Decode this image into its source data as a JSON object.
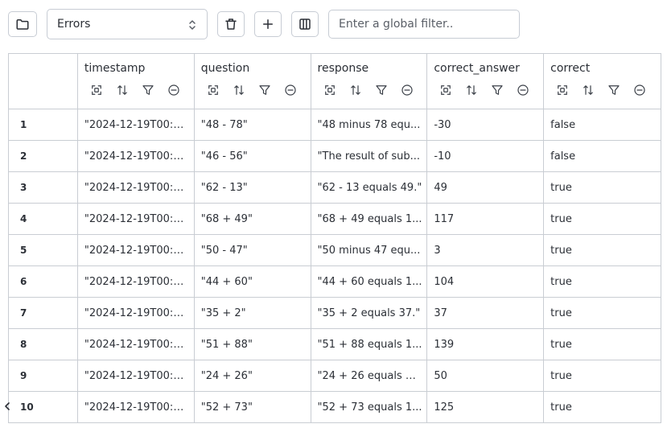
{
  "toolbar": {
    "folder_icon": "folder-icon",
    "view_select": {
      "selected": "Errors"
    },
    "delete_icon": "trash-icon",
    "add_icon": "plus-icon",
    "columns_icon": "columns-icon",
    "filter": {
      "placeholder": "Enter a global filter..",
      "value": ""
    }
  },
  "table": {
    "columns": [
      "timestamp",
      "question",
      "response",
      "correct_answer",
      "correct"
    ],
    "column_icons": [
      "expand-icon",
      "sort-icon",
      "filter-icon",
      "hide-icon"
    ],
    "rows": [
      {
        "index": "1",
        "timestamp": "\"2024-12-19T00:5...",
        "question": "\"48 - 78\"",
        "response": "\"48 minus 78 equ...",
        "correct_answer": "-30",
        "correct": "false"
      },
      {
        "index": "2",
        "timestamp": "\"2024-12-19T00:5...",
        "question": "\"46 - 56\"",
        "response": "\"The result of sub...",
        "correct_answer": "-10",
        "correct": "false"
      },
      {
        "index": "3",
        "timestamp": "\"2024-12-19T00:5...",
        "question": "\"62 - 13\"",
        "response": "\"62 - 13 equals 49.\"",
        "correct_answer": "49",
        "correct": "true"
      },
      {
        "index": "4",
        "timestamp": "\"2024-12-19T00:5...",
        "question": "\"68 + 49\"",
        "response": "\"68 + 49 equals 1...",
        "correct_answer": "117",
        "correct": "true"
      },
      {
        "index": "5",
        "timestamp": "\"2024-12-19T00:5...",
        "question": "\"50 - 47\"",
        "response": "\"50 minus 47 equ...",
        "correct_answer": "3",
        "correct": "true"
      },
      {
        "index": "6",
        "timestamp": "\"2024-12-19T00:5...",
        "question": "\"44 + 60\"",
        "response": "\"44 + 60 equals 1...",
        "correct_answer": "104",
        "correct": "true"
      },
      {
        "index": "7",
        "timestamp": "\"2024-12-19T00:5...",
        "question": "\"35 + 2\"",
        "response": "\"35 + 2 equals 37.\"",
        "correct_answer": "37",
        "correct": "true"
      },
      {
        "index": "8",
        "timestamp": "\"2024-12-19T00:5...",
        "question": "\"51 + 88\"",
        "response": "\"51 + 88 equals 1...",
        "correct_answer": "139",
        "correct": "true"
      },
      {
        "index": "9",
        "timestamp": "\"2024-12-19T00:5...",
        "question": "\"24 + 26\"",
        "response": "\"24 + 26 equals 50.\"",
        "correct_answer": "50",
        "correct": "true"
      },
      {
        "index": "10",
        "timestamp": "\"2024-12-19T00:5...",
        "question": "\"52 + 73\"",
        "response": "\"52 + 73 equals 1...",
        "correct_answer": "125",
        "correct": "true"
      }
    ]
  },
  "colors": {
    "border": "#c9cdd3",
    "text": "#2b2f36"
  }
}
